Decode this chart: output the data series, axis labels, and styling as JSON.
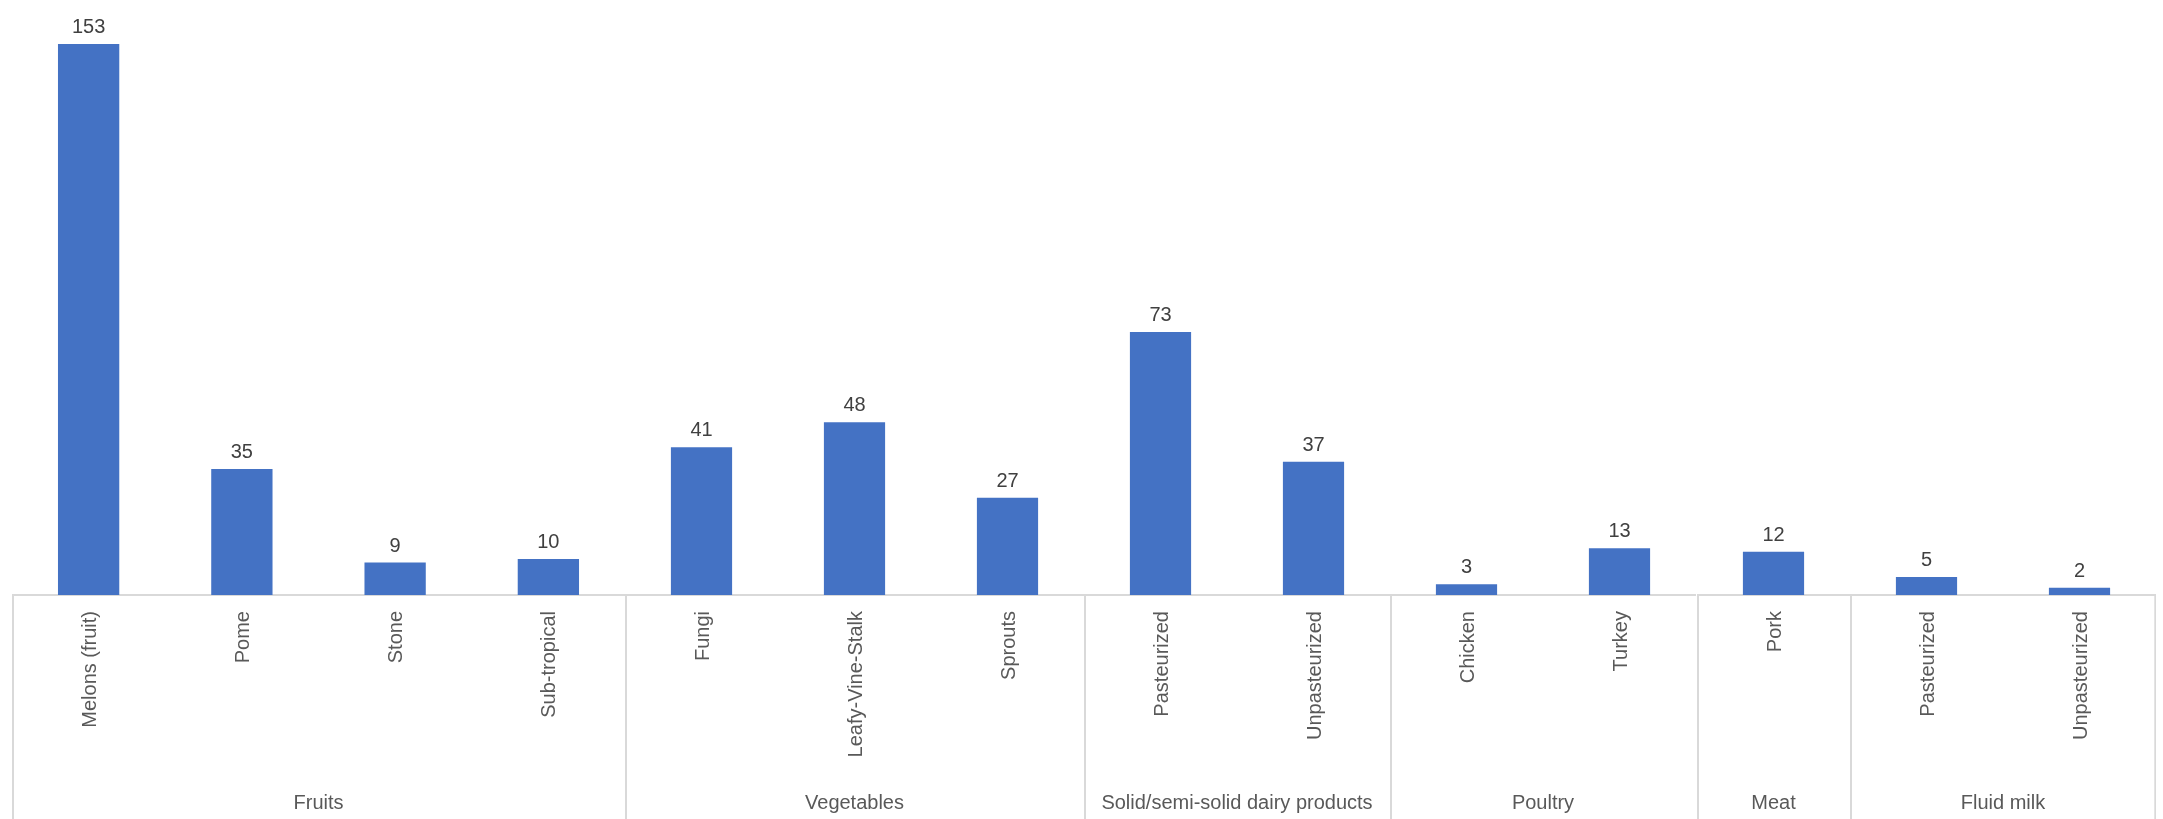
{
  "chart_data": [
    {
      "type": "bar",
      "xlabel": "Fruits",
      "categories": [
        "Melons (fruit)",
        "Pome",
        "Stone",
        "Sub-tropical"
      ],
      "values": [
        153,
        35,
        9,
        10
      ],
      "color": "#4472c4",
      "data_labels": true
    },
    {
      "type": "bar",
      "xlabel": "Vegetables",
      "categories": [
        "Fungi",
        "Leafy-Vine-Stalk",
        "Sprouts"
      ],
      "values": [
        41,
        48,
        27
      ],
      "color": "#4472c4",
      "data_labels": true
    },
    {
      "type": "bar",
      "xlabel": "Solid/semi-solid dairy products",
      "categories": [
        "Pasteurized",
        "Unpasteurized"
      ],
      "values": [
        73,
        37
      ],
      "color": "#4472c4",
      "data_labels": true
    },
    {
      "type": "bar",
      "xlabel": "Poultry",
      "categories": [
        "Chicken",
        "Turkey"
      ],
      "values": [
        3,
        13
      ],
      "color": "#4472c4",
      "data_labels": true
    },
    {
      "type": "bar",
      "xlabel": "Meat",
      "categories": [
        "Pork"
      ],
      "values": [
        12
      ],
      "color": "#4472c4",
      "data_labels": true
    },
    {
      "type": "bar",
      "xlabel": "Fluid milk",
      "categories": [
        "Pasteurized",
        "Unpasteurized"
      ],
      "values": [
        5,
        2
      ],
      "color": "#4472c4",
      "data_labels": true
    }
  ]
}
